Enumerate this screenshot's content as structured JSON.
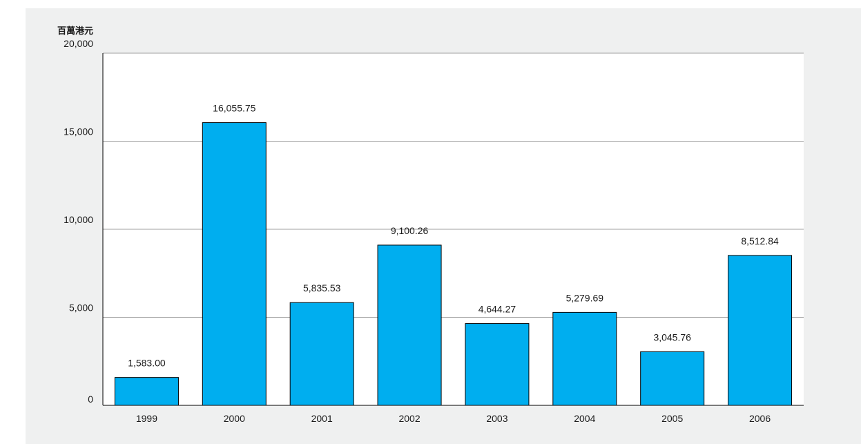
{
  "title": "",
  "chart_data": {
    "type": "bar",
    "title": "",
    "unit_label": "百萬港元",
    "xlabel": "",
    "ylabel": "",
    "categories": [
      "1999",
      "2000",
      "2001",
      "2002",
      "2003",
      "2004",
      "2005",
      "2006"
    ],
    "values": [
      1583.0,
      16055.75,
      5835.53,
      9100.26,
      4644.27,
      5279.69,
      3045.76,
      8512.84
    ],
    "value_labels": [
      "1,583.00",
      "16,055.75",
      "5,835.53",
      "9,100.26",
      "4,644.27",
      "5,279.69",
      "3,045.76",
      "8,512.84"
    ],
    "ylim": [
      0,
      20000
    ],
    "yticks": [
      0,
      5000,
      10000,
      15000,
      20000
    ],
    "ytick_labels": [
      "0",
      "5,000",
      "10,000",
      "15,000",
      "20,000"
    ],
    "grid": true,
    "legend": "none",
    "colors": {
      "bar": "#00aeef",
      "bar_stroke": "#000000",
      "panel_background": "#eff0f0",
      "plot_background": "#ffffff",
      "gridline": "#a0a0a0",
      "title_text": "#c8102e"
    }
  }
}
